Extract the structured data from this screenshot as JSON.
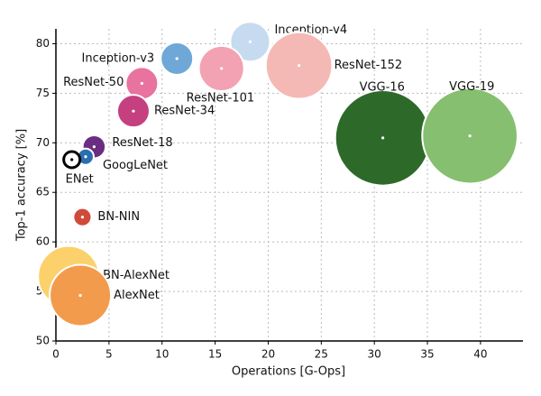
{
  "chart_data": {
    "type": "scatter",
    "x_label": "Operations [G-Ops]",
    "y_label": "Top-1 accuracy [%]",
    "xlim": [
      0,
      44
    ],
    "ylim": [
      50,
      81.5
    ],
    "xticks": [
      0,
      5,
      10,
      15,
      20,
      25,
      30,
      35,
      40
    ],
    "yticks": [
      50,
      55,
      60,
      65,
      70,
      75,
      80
    ],
    "grid": true,
    "series": [
      {
        "name": "Inception-v4",
        "color": "#c6dbef",
        "x": [
          18.3
        ],
        "values": [
          80.2
        ],
        "sizes": [
          24
        ]
      },
      {
        "name": "ResNet-152",
        "color": "#f4b9b5",
        "x": [
          22.9
        ],
        "values": [
          77.8
        ],
        "sizes": [
          67
        ]
      },
      {
        "name": "VGG-16",
        "color": "#2d6a2a",
        "x": [
          30.8
        ],
        "values": [
          70.5
        ],
        "sizes": [
          138
        ]
      },
      {
        "name": "VGG-19",
        "color": "#86bf6f",
        "x": [
          39.0
        ],
        "values": [
          70.7
        ],
        "sizes": [
          138
        ]
      },
      {
        "name": "Inception-v3",
        "color": "#6fa8d6",
        "x": [
          11.4
        ],
        "values": [
          78.5
        ],
        "sizes": [
          16
        ]
      },
      {
        "name": "ResNet-101",
        "color": "#f2a2b2",
        "x": [
          15.6
        ],
        "values": [
          77.5
        ],
        "sizes": [
          31
        ]
      },
      {
        "name": "ResNet-50",
        "color": "#e8739e",
        "x": [
          8.1
        ],
        "values": [
          76.0
        ],
        "sizes": [
          16
        ]
      },
      {
        "name": "ResNet-34",
        "color": "#c5407e",
        "x": [
          7.3
        ],
        "values": [
          73.2
        ],
        "sizes": [
          16
        ]
      },
      {
        "name": "ResNet-18",
        "color": "#6a2d82",
        "x": [
          3.6
        ],
        "values": [
          69.6
        ],
        "sizes": [
          8
        ]
      },
      {
        "name": "GoogLeNet",
        "color": "#2a6eb0",
        "x": [
          2.8
        ],
        "values": [
          68.6
        ],
        "sizes": [
          4
        ]
      },
      {
        "name": "ENet",
        "color": "#000000",
        "x": [
          1.5
        ],
        "values": [
          68.3
        ],
        "sizes": [
          4
        ]
      },
      {
        "name": "BN-NIN",
        "color": "#d04a3a",
        "x": [
          2.5
        ],
        "values": [
          62.5
        ],
        "sizes": [
          5
        ]
      },
      {
        "name": "BN-AlexNet",
        "color": "#fcd16b",
        "x": [
          1.2
        ],
        "values": [
          56.5
        ],
        "sizes": [
          57
        ]
      },
      {
        "name": "AlexNet",
        "color": "#f39b4c",
        "x": [
          2.3
        ],
        "values": [
          54.6
        ],
        "sizes": [
          57
        ]
      }
    ]
  }
}
